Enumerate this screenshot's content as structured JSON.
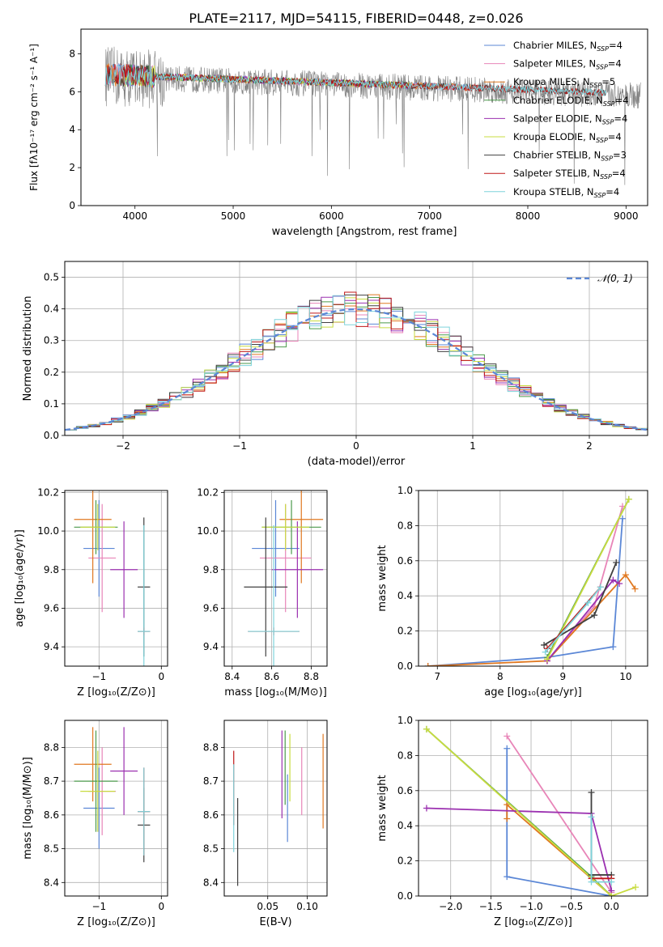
{
  "figure": {
    "title": "PLATE=2117, MJD=54115, FIBERID=0448, z=0.026"
  },
  "chart_data": [
    {
      "id": "spectrum",
      "type": "line",
      "xlabel": "wavelength [Angstrom, rest frame]",
      "ylabel": "Flux [fλ10⁻¹⁷ erg cm⁻² s⁻¹ A⁻¹]",
      "xlim": [
        3450,
        9220
      ],
      "ylim": [
        0,
        9.3
      ],
      "xticks": [
        4000,
        5000,
        6000,
        7000,
        8000,
        9000
      ],
      "yticks": [
        0,
        2,
        4,
        6,
        8
      ],
      "legend_position": "upper-right",
      "data_series": {
        "name": "",
        "color": "#808080",
        "x_range": [
          3700,
          9150
        ],
        "level_start": 6.8,
        "level_end": 5.8
      },
      "series": [
        {
          "name": "Chabrier MILES, N",
          "sub": "SSP",
          "suffix": "=4",
          "color": "#5b87d6",
          "x_range": [
            3700,
            7420
          ]
        },
        {
          "name": "Salpeter MILES, N",
          "sub": "SSP",
          "suffix": "=4",
          "color": "#e885b8",
          "x_range": [
            3700,
            7420
          ]
        },
        {
          "name": "Kroupa MILES, N",
          "sub": "SSP",
          "suffix": "=5",
          "color": "#e07820",
          "x_range": [
            3700,
            7420
          ]
        },
        {
          "name": "Chabrier ELODIE, N",
          "sub": "SSP",
          "suffix": "=4",
          "color": "#4b9a4b",
          "x_range": [
            3900,
            6800
          ]
        },
        {
          "name": "Salpeter ELODIE, N",
          "sub": "SSP",
          "suffix": "=4",
          "color": "#9b30b0",
          "x_range": [
            3900,
            6800
          ]
        },
        {
          "name": "Kroupa ELODIE, N",
          "sub": "SSP",
          "suffix": "=4",
          "color": "#c8dc40",
          "x_range": [
            3900,
            6800
          ]
        },
        {
          "name": "Chabrier STELIB, N",
          "sub": "SSP",
          "suffix": "=3",
          "color": "#404040",
          "x_range": [
            3700,
            8800
          ]
        },
        {
          "name": "Salpeter STELIB, N",
          "sub": "SSP",
          "suffix": "=4",
          "color": "#c01818",
          "x_range": [
            3700,
            8800
          ]
        },
        {
          "name": "Kroupa STELIB, N",
          "sub": "SSP",
          "suffix": "=4",
          "color": "#7fd4dc",
          "x_range": [
            3700,
            8800
          ]
        }
      ]
    },
    {
      "id": "residuals",
      "type": "step-histogram",
      "xlabel": "(data-model)/error",
      "ylabel": "Normed distribution",
      "xlim": [
        -2.5,
        2.5
      ],
      "ylim": [
        0,
        0.55
      ],
      "xticks": [
        -2,
        -1,
        0,
        1,
        2
      ],
      "yticks": [
        0.0,
        0.1,
        0.2,
        0.3,
        0.4,
        0.5
      ],
      "grid": true,
      "bin_width": 0.1,
      "reference_curve": {
        "label": "𝒩(0, 1)",
        "color": "#5b87d6",
        "style": "dashed"
      },
      "series_colors": [
        "#5b87d6",
        "#e885b8",
        "#e07820",
        "#4b9a4b",
        "#9b30b0",
        "#c8dc40",
        "#404040",
        "#c01818",
        "#7fd4dc"
      ]
    },
    {
      "id": "age-vs-Z",
      "type": "errorbar",
      "xlabel": "Z [log₁₀(Z/Z⊙)]",
      "ylabel": "age  [log₁₀(age/yr)]",
      "xlim": [
        -1.55,
        0.1
      ],
      "ylim": [
        9.3,
        10.21
      ],
      "xticks": [
        -1,
        0
      ],
      "xticklabels": [
        "−1",
        "0"
      ],
      "yticks": [
        9.4,
        9.6,
        9.8,
        10.0,
        10.2
      ],
      "grid": true,
      "points": [
        {
          "color": "#5b87d6",
          "x": -1.0,
          "xerr": 0.25,
          "y": 9.91,
          "yerr": 0.25
        },
        {
          "color": "#e885b8",
          "x": -0.95,
          "xerr": 0.22,
          "y": 9.86,
          "yerr": 0.28
        },
        {
          "color": "#e07820",
          "x": -1.1,
          "xerr": 0.3,
          "y": 10.06,
          "yerr": 0.33
        },
        {
          "color": "#4b9a4b",
          "x": -1.05,
          "xerr": 0.35,
          "y": 10.02,
          "yerr": 0.14
        },
        {
          "color": "#9b30b0",
          "x": -0.6,
          "xerr": 0.22,
          "y": 9.8,
          "yerr": 0.25
        },
        {
          "color": "#c8dc40",
          "x": -1.02,
          "xerr": 0.28,
          "y": 10.02,
          "yerr": 0.12
        },
        {
          "color": "#404040",
          "x": -0.28,
          "xerr": 0.1,
          "y": 9.71,
          "yerr": 0.36
        },
        {
          "color": "#c01818",
          "x": -0.28,
          "xerr": 0.1,
          "y": 9.48,
          "yerr": 0.02
        },
        {
          "color": "#7fd4dc",
          "x": -0.28,
          "xerr": 0.1,
          "y": 9.48,
          "yerr": 0.55
        }
      ]
    },
    {
      "id": "age-vs-mass",
      "type": "errorbar",
      "xlabel": "mass [log₁₀(M/M⊙)]",
      "ylabel": "",
      "xlim": [
        8.36,
        8.88
      ],
      "ylim": [
        9.3,
        10.21
      ],
      "xticks": [
        8.4,
        8.6,
        8.8
      ],
      "yticks": [
        9.4,
        9.6,
        9.8,
        10.0,
        10.2
      ],
      "grid": true,
      "points": [
        {
          "color": "#5b87d6",
          "x": 8.62,
          "xerr": 0.12,
          "y": 9.91,
          "yerr": 0.25
        },
        {
          "color": "#e885b8",
          "x": 8.67,
          "xerr": 0.13,
          "y": 9.86,
          "yerr": 0.28
        },
        {
          "color": "#e07820",
          "x": 8.75,
          "xerr": 0.11,
          "y": 10.06,
          "yerr": 0.33
        },
        {
          "color": "#4b9a4b",
          "x": 8.7,
          "xerr": 0.15,
          "y": 10.02,
          "yerr": 0.14
        },
        {
          "color": "#9b30b0",
          "x": 8.73,
          "xerr": 0.13,
          "y": 9.8,
          "yerr": 0.25
        },
        {
          "color": "#c8dc40",
          "x": 8.67,
          "xerr": 0.12,
          "y": 10.02,
          "yerr": 0.12
        },
        {
          "color": "#404040",
          "x": 8.57,
          "xerr": 0.11,
          "y": 9.71,
          "yerr": 0.36
        },
        {
          "color": "#c01818",
          "x": 8.61,
          "xerr": 0.13,
          "y": 9.48,
          "yerr": 0.02
        },
        {
          "color": "#7fd4dc",
          "x": 8.61,
          "xerr": 0.13,
          "y": 9.48,
          "yerr": 0.55
        }
      ]
    },
    {
      "id": "weight-vs-age",
      "type": "line",
      "xlabel": "age  [log₁₀(age/yr)]",
      "ylabel": "mass weight",
      "xlim": [
        6.7,
        10.35
      ],
      "ylim": [
        0,
        1.0
      ],
      "xticks": [
        7,
        8,
        9,
        10
      ],
      "yticks": [
        0.0,
        0.2,
        0.4,
        0.6,
        0.8,
        1.0
      ],
      "grid": true,
      "series": [
        {
          "color": "#5b87d6",
          "points": [
            [
              6.85,
              0.0
            ],
            [
              8.75,
              0.05
            ],
            [
              9.8,
              0.11
            ],
            [
              9.95,
              0.84
            ]
          ]
        },
        {
          "color": "#e885b8",
          "points": [
            [
              8.75,
              0.03
            ],
            [
              9.5,
              0.34
            ],
            [
              9.95,
              0.91
            ]
          ]
        },
        {
          "color": "#e07820",
          "points": [
            [
              6.85,
              0.0
            ],
            [
              8.75,
              0.03
            ],
            [
              10.0,
              0.52
            ],
            [
              10.15,
              0.44
            ]
          ]
        },
        {
          "color": "#4b9a4b",
          "points": [
            [
              8.75,
              0.05
            ],
            [
              10.05,
              0.95
            ]
          ]
        },
        {
          "color": "#9b30b0",
          "points": [
            [
              8.75,
              0.03
            ],
            [
              9.8,
              0.49
            ],
            [
              9.9,
              0.47
            ]
          ]
        },
        {
          "color": "#c8dc40",
          "points": [
            [
              8.75,
              0.04
            ],
            [
              10.05,
              0.95
            ]
          ]
        },
        {
          "color": "#404040",
          "points": [
            [
              8.7,
              0.12
            ],
            [
              9.5,
              0.29
            ],
            [
              9.85,
              0.59
            ]
          ]
        },
        {
          "color": "#c01818",
          "points": [
            [
              8.75,
              0.1
            ],
            [
              9.6,
              0.45
            ]
          ]
        },
        {
          "color": "#7fd4dc",
          "points": [
            [
              8.72,
              0.08
            ],
            [
              9.4,
              0.36
            ],
            [
              9.6,
              0.45
            ]
          ]
        }
      ]
    },
    {
      "id": "mass-vs-Z",
      "type": "errorbar",
      "xlabel": "Z [log₁₀(Z/Z⊙)]",
      "ylabel": "mass [log₁₀(M/M⊙)]",
      "xlim": [
        -1.55,
        0.1
      ],
      "ylim": [
        8.36,
        8.88
      ],
      "xticks": [
        -1,
        0
      ],
      "xticklabels": [
        "−1",
        "0"
      ],
      "yticks": [
        8.4,
        8.5,
        8.6,
        8.7,
        8.8
      ],
      "grid": true,
      "points": [
        {
          "color": "#5b87d6",
          "x": -1.0,
          "xerr": 0.25,
          "y": 8.62,
          "yerr": 0.12
        },
        {
          "color": "#e885b8",
          "x": -0.95,
          "xerr": 0.22,
          "y": 8.67,
          "yerr": 0.13
        },
        {
          "color": "#e07820",
          "x": -1.1,
          "xerr": 0.3,
          "y": 8.75,
          "yerr": 0.11
        },
        {
          "color": "#4b9a4b",
          "x": -1.05,
          "xerr": 0.35,
          "y": 8.7,
          "yerr": 0.15
        },
        {
          "color": "#9b30b0",
          "x": -0.6,
          "xerr": 0.22,
          "y": 8.73,
          "yerr": 0.13
        },
        {
          "color": "#c8dc40",
          "x": -1.02,
          "xerr": 0.28,
          "y": 8.67,
          "yerr": 0.12
        },
        {
          "color": "#404040",
          "x": -0.28,
          "xerr": 0.1,
          "y": 8.57,
          "yerr": 0.11
        },
        {
          "color": "#c01818",
          "x": -0.28,
          "xerr": 0.1,
          "y": 8.61,
          "yerr": 0.13
        },
        {
          "color": "#7fd4dc",
          "x": -0.28,
          "xerr": 0.1,
          "y": 8.61,
          "yerr": 0.13
        }
      ]
    },
    {
      "id": "mass-vs-EBV",
      "type": "errorbar",
      "xlabel": "E(B-V)",
      "ylabel": "",
      "xlim": [
        -0.005,
        0.125
      ],
      "ylim": [
        8.36,
        8.88
      ],
      "xticks": [
        0.05,
        0.1
      ],
      "xticklabels": [
        "0.05",
        "0.10"
      ],
      "yticks": [
        8.4,
        8.5,
        8.6,
        8.7,
        8.8
      ],
      "grid": true,
      "points": [
        {
          "color": "#5b87d6",
          "x": 0.075,
          "xerr": 0,
          "y": 8.62,
          "yerr": 0.1
        },
        {
          "color": "#e885b8",
          "x": 0.093,
          "xerr": 0,
          "y": 8.7,
          "yerr": 0.1
        },
        {
          "color": "#e07820",
          "x": 0.12,
          "xerr": 0,
          "y": 8.7,
          "yerr": 0.14
        },
        {
          "color": "#4b9a4b",
          "x": 0.072,
          "xerr": 0,
          "y": 8.74,
          "yerr": 0.11
        },
        {
          "color": "#9b30b0",
          "x": 0.068,
          "xerr": 0,
          "y": 8.72,
          "yerr": 0.13
        },
        {
          "color": "#c8dc40",
          "x": 0.078,
          "xerr": 0,
          "y": 8.74,
          "yerr": 0.1
        },
        {
          "color": "#404040",
          "x": 0.012,
          "xerr": 0,
          "y": 8.52,
          "yerr": 0.13
        },
        {
          "color": "#c01818",
          "x": 0.007,
          "xerr": 0,
          "y": 8.68,
          "yerr": 0.11
        },
        {
          "color": "#7fd4dc",
          "x": 0.007,
          "xerr": 0,
          "y": 8.62,
          "yerr": 0.13
        }
      ]
    },
    {
      "id": "weight-vs-Z",
      "type": "line",
      "xlabel": "Z [log₁₀(Z/Z⊙)]",
      "ylabel": "mass weight",
      "xlim": [
        -2.4,
        0.45
      ],
      "ylim": [
        0,
        1.0
      ],
      "xticks": [
        -2.0,
        -1.5,
        -1.0,
        -0.5,
        0.0
      ],
      "xticklabels": [
        "−2.0",
        "−1.5",
        "−1.0",
        "−0.5",
        "0.0"
      ],
      "yticks": [
        0.0,
        0.2,
        0.4,
        0.6,
        0.8,
        1.0
      ],
      "grid": true,
      "series": [
        {
          "color": "#5b87d6",
          "points": [
            [
              -1.3,
              0.84
            ],
            [
              -1.3,
              0.11
            ],
            [
              0.0,
              0.0
            ]
          ]
        },
        {
          "color": "#e885b8",
          "points": [
            [
              -1.3,
              0.91
            ],
            [
              0.0,
              0.02
            ]
          ]
        },
        {
          "color": "#e07820",
          "points": [
            [
              -1.3,
              0.44
            ],
            [
              -1.3,
              0.52
            ],
            [
              0.0,
              0.0
            ]
          ]
        },
        {
          "color": "#4b9a4b",
          "points": [
            [
              -2.3,
              0.95
            ],
            [
              -0.25,
              0.11
            ],
            [
              0.0,
              0.0
            ]
          ]
        },
        {
          "color": "#9b30b0",
          "points": [
            [
              -2.3,
              0.5
            ],
            [
              -0.25,
              0.47
            ],
            [
              0.0,
              0.03
            ]
          ]
        },
        {
          "color": "#c8dc40",
          "points": [
            [
              -2.3,
              0.95
            ],
            [
              0.0,
              0.0
            ],
            [
              0.3,
              0.05
            ]
          ]
        },
        {
          "color": "#404040",
          "points": [
            [
              -0.25,
              0.59
            ],
            [
              -0.25,
              0.12
            ],
            [
              0.0,
              0.12
            ]
          ]
        },
        {
          "color": "#c01818",
          "points": [
            [
              -0.25,
              0.1
            ],
            [
              0.0,
              0.1
            ]
          ]
        },
        {
          "color": "#7fd4dc",
          "points": [
            [
              -0.25,
              0.45
            ],
            [
              -0.25,
              0.08
            ],
            [
              0.0,
              0.08
            ]
          ]
        }
      ]
    }
  ]
}
